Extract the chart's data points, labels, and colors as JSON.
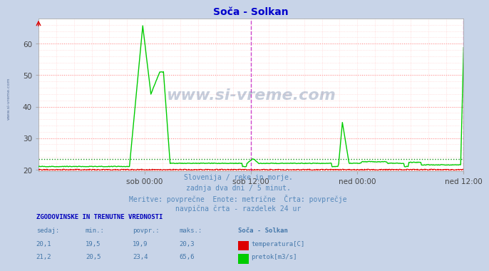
{
  "title": "Soča - Solkan",
  "title_color": "#0000cc",
  "bg_color": "#c8d4e8",
  "plot_bg_color": "#ffffff",
  "grid_color_major": "#ff9999",
  "grid_color_minor": "#ffcccc",
  "xlabel_ticks": [
    "sob 00:00",
    "sob 12:00",
    "ned 00:00",
    "ned 12:00"
  ],
  "xlabel_tick_pos": [
    0.25,
    0.5,
    0.75,
    1.0
  ],
  "ylim_min": 19.5,
  "ylim_max": 68,
  "yticks": [
    20,
    30,
    40,
    50,
    60
  ],
  "temp_color": "#dd0000",
  "flow_color": "#00cc00",
  "avg_temp_color": "#dd0000",
  "avg_flow_color": "#008800",
  "vline_color": "#cc44cc",
  "watermark_color": "#1a3870",
  "subtitle_color": "#5588bb",
  "table_header_color": "#0000bb",
  "table_value_color": "#4477aa",
  "subtitle_lines": [
    "Slovenija / reke in morje.",
    "zadnja dva dni / 5 minut.",
    "Meritve: povprečne  Enote: metrične  Črta: povprečje",
    "navpična črta - razdelek 24 ur"
  ],
  "table_title": "ZGODOVINSKE IN TRENUTNE VREDNOSTI",
  "col_headers": [
    "sedaj:",
    "min.:",
    "povpr.:",
    "maks.:",
    "Soča - Solkan"
  ],
  "row1": [
    "20,1",
    "19,5",
    "19,9",
    "20,3",
    "temperatura[C]"
  ],
  "row2": [
    "21,2",
    "20,5",
    "23,4",
    "65,6",
    "pretok[m3/s]"
  ],
  "avg_temp": 19.9,
  "avg_flow": 23.4,
  "total_points": 576
}
